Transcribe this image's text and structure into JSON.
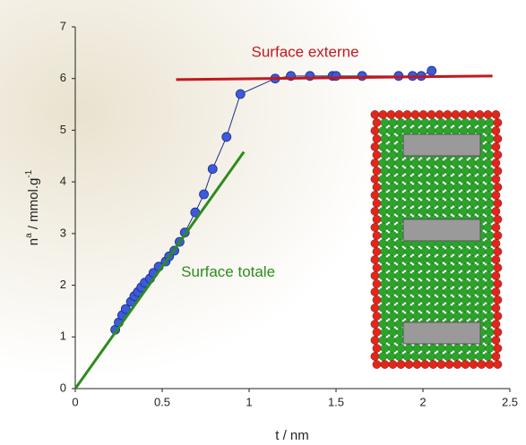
{
  "chart_data": {
    "type": "scatter",
    "x_label": "t / nm",
    "y_label": [
      "n",
      "a",
      " / mmol.g",
      "-1"
    ],
    "xlim": [
      0,
      2.5
    ],
    "xticks": [
      0,
      0.5,
      1,
      1.5,
      2,
      2.5
    ],
    "ylim": [
      0,
      7
    ],
    "yticks": [
      0,
      1,
      2,
      3,
      4,
      5,
      6,
      7
    ],
    "series": [
      {
        "kind": "points",
        "color": "#3b5bdb",
        "line": true,
        "x": [
          0.23,
          0.25,
          0.27,
          0.29,
          0.32,
          0.34,
          0.36,
          0.38,
          0.4,
          0.43,
          0.45,
          0.48,
          0.52,
          0.54,
          0.57,
          0.6,
          0.63,
          0.69,
          0.74,
          0.79,
          0.87,
          0.95,
          1.15,
          1.24,
          1.35,
          1.48,
          1.5,
          1.65,
          1.86,
          1.94,
          1.99,
          2.05
        ],
        "values": [
          1.14,
          1.28,
          1.42,
          1.54,
          1.68,
          1.79,
          1.87,
          1.96,
          2.05,
          2.13,
          2.24,
          2.36,
          2.46,
          2.56,
          2.67,
          2.84,
          3.02,
          3.41,
          3.76,
          4.25,
          4.87,
          5.7,
          6.0,
          6.05,
          6.05,
          6.05,
          6.05,
          6.05,
          6.05,
          6.05,
          6.05,
          6.15
        ]
      },
      {
        "kind": "fit",
        "name": "Surface externe",
        "color": "#c0191e",
        "x": [
          0.58,
          2.4
        ],
        "values": [
          5.98,
          6.05
        ]
      },
      {
        "kind": "fit",
        "name": "Surface totale",
        "color": "#2e8b1e",
        "x": [
          0,
          0.97
        ],
        "values": [
          0,
          4.58
        ]
      }
    ]
  }
}
